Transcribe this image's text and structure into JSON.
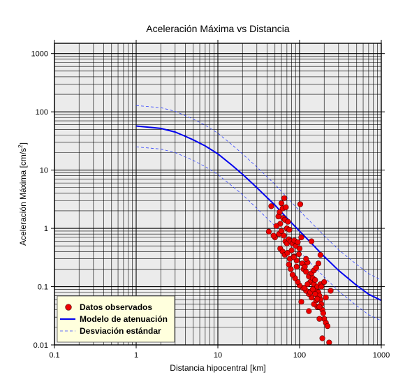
{
  "chart_data": {
    "type": "scatter",
    "title": "Aceleración Máxima vs Distancia",
    "xlabel": "Distancia hipocentral [km]",
    "ylabel": "Aceleración Máxima [cm/s",
    "ylabel_sup": "2",
    "ylabel_end": "]",
    "xscale": "log",
    "yscale": "log",
    "xlim": [
      0.1,
      1000
    ],
    "ylim": [
      0.01,
      1500
    ],
    "grid": true,
    "legend_position": "bottom-left",
    "x_ticks": [
      {
        "value": 0.1,
        "label": "0.1"
      },
      {
        "value": 1,
        "label": "1"
      },
      {
        "value": 10,
        "label": "10"
      },
      {
        "value": 100,
        "label": "100"
      },
      {
        "value": 1000,
        "label": "1000"
      }
    ],
    "y_ticks": [
      {
        "value": 0.01,
        "label": "0.01"
      },
      {
        "value": 0.1,
        "label": "0.1"
      },
      {
        "value": 1,
        "label": "1"
      },
      {
        "value": 10,
        "label": "10"
      },
      {
        "value": 100,
        "label": "100"
      },
      {
        "value": 1000,
        "label": "1000"
      }
    ],
    "colors": {
      "plot_background": "#ebebeb",
      "grid": "#000000",
      "model": "#0000ee",
      "deviation": "#3344ff",
      "points": "#ee0000",
      "point_edge": "#550000",
      "legend_background": "#ffffdd"
    },
    "series": [
      {
        "name": "Datos observados",
        "style": "scatter",
        "points": [
          [
            45,
            2.4
          ],
          [
            50,
            0.7
          ],
          [
            55,
            1.6
          ],
          [
            57,
            1.9
          ],
          [
            60,
            2.7
          ],
          [
            62,
            2.2
          ],
          [
            65,
            3.3
          ],
          [
            68,
            2.3
          ],
          [
            58,
            1.2
          ],
          [
            63,
            1.5
          ],
          [
            66,
            1.4
          ],
          [
            70,
            1.0
          ],
          [
            72,
            1.3
          ],
          [
            75,
            0.95
          ],
          [
            52,
            1.1
          ],
          [
            56,
            0.8
          ],
          [
            60,
            0.9
          ],
          [
            64,
            0.75
          ],
          [
            67,
            0.6
          ],
          [
            70,
            0.55
          ],
          [
            74,
            0.65
          ],
          [
            78,
            0.6
          ],
          [
            82,
            0.55
          ],
          [
            86,
            0.62
          ],
          [
            90,
            0.5
          ],
          [
            95,
            0.58
          ],
          [
            100,
            0.45
          ],
          [
            105,
            0.7
          ],
          [
            42,
            0.88
          ],
          [
            48,
            0.75
          ],
          [
            58,
            0.45
          ],
          [
            62,
            0.4
          ],
          [
            66,
            0.35
          ],
          [
            71,
            0.38
          ],
          [
            76,
            0.3
          ],
          [
            80,
            0.42
          ],
          [
            85,
            0.33
          ],
          [
            92,
            0.28
          ],
          [
            98,
            0.36
          ],
          [
            102,
            2.6
          ],
          [
            108,
            0.25
          ],
          [
            112,
            0.2
          ],
          [
            116,
            0.22
          ],
          [
            120,
            0.18
          ],
          [
            125,
            0.26
          ],
          [
            130,
            0.15
          ],
          [
            135,
            0.12
          ],
          [
            140,
            0.6
          ],
          [
            145,
            0.14
          ],
          [
            150,
            0.11
          ],
          [
            155,
            0.13
          ],
          [
            160,
            0.09
          ],
          [
            165,
            0.1
          ],
          [
            170,
            0.08
          ],
          [
            175,
            0.07
          ],
          [
            180,
            0.06
          ],
          [
            185,
            0.05
          ],
          [
            190,
            0.04
          ],
          [
            195,
            0.035
          ],
          [
            200,
            0.028
          ],
          [
            210,
            0.024
          ],
          [
            220,
            0.021
          ],
          [
            230,
            0.011
          ],
          [
            190,
            0.013
          ],
          [
            175,
            0.028
          ],
          [
            165,
            0.045
          ],
          [
            150,
            0.05
          ],
          [
            140,
            0.065
          ],
          [
            130,
            0.075
          ],
          [
            120,
            0.085
          ],
          [
            110,
            0.095
          ],
          [
            100,
            0.105
          ],
          [
            95,
            0.12
          ],
          [
            88,
            0.14
          ],
          [
            82,
            0.16
          ],
          [
            78,
            0.2
          ],
          [
            74,
            0.24
          ],
          [
            140,
            0.17
          ],
          [
            150,
            0.19
          ],
          [
            160,
            0.21
          ],
          [
            170,
            0.25
          ],
          [
            180,
            0.11
          ],
          [
            185,
            0.1
          ],
          [
            200,
            0.12
          ],
          [
            240,
            0.085
          ],
          [
            210,
            0.065
          ],
          [
            105,
            0.055
          ],
          [
            130,
            0.038
          ],
          [
            160,
            0.058
          ],
          [
            175,
            0.045
          ],
          [
            85,
            0.32
          ],
          [
            92,
            0.22
          ],
          [
            115,
            0.095
          ],
          [
            125,
            0.11
          ],
          [
            135,
            0.08
          ],
          [
            145,
            0.09
          ],
          [
            155,
            0.075
          ],
          [
            165,
            0.062
          ],
          [
            120,
            0.3
          ],
          [
            180,
            0.35
          ]
        ]
      },
      {
        "name": "Modelo de atenuación",
        "style": "solid",
        "points": [
          [
            1,
            57
          ],
          [
            2,
            52
          ],
          [
            3,
            45
          ],
          [
            4,
            38
          ],
          [
            5,
            33
          ],
          [
            7,
            26
          ],
          [
            10,
            19
          ],
          [
            15,
            12
          ],
          [
            20,
            8.5
          ],
          [
            30,
            5
          ],
          [
            50,
            2.5
          ],
          [
            70,
            1.5
          ],
          [
            100,
            0.9
          ],
          [
            150,
            0.5
          ],
          [
            200,
            0.33
          ],
          [
            300,
            0.19
          ],
          [
            500,
            0.105
          ],
          [
            700,
            0.074
          ],
          [
            1000,
            0.058
          ]
        ]
      },
      {
        "name": "Desviación estándar",
        "style": "dashed",
        "upper": [
          [
            1,
            128
          ],
          [
            2,
            118
          ],
          [
            3,
            102
          ],
          [
            4,
            86
          ],
          [
            5,
            75
          ],
          [
            7,
            59
          ],
          [
            10,
            43
          ],
          [
            15,
            27
          ],
          [
            20,
            19
          ],
          [
            30,
            11.3
          ],
          [
            50,
            5.7
          ],
          [
            70,
            3.4
          ],
          [
            100,
            2.0
          ],
          [
            150,
            1.13
          ],
          [
            200,
            0.75
          ],
          [
            300,
            0.43
          ],
          [
            500,
            0.24
          ],
          [
            700,
            0.167
          ],
          [
            1000,
            0.13
          ]
        ],
        "lower": [
          [
            1,
            25
          ],
          [
            2,
            23
          ],
          [
            3,
            20
          ],
          [
            4,
            16.8
          ],
          [
            5,
            14.6
          ],
          [
            7,
            11.5
          ],
          [
            10,
            8.4
          ],
          [
            15,
            5.3
          ],
          [
            20,
            3.8
          ],
          [
            30,
            2.2
          ],
          [
            50,
            1.1
          ],
          [
            70,
            0.66
          ],
          [
            100,
            0.4
          ],
          [
            150,
            0.22
          ],
          [
            200,
            0.147
          ],
          [
            300,
            0.084
          ],
          [
            500,
            0.047
          ],
          [
            700,
            0.033
          ],
          [
            1000,
            0.026
          ]
        ]
      }
    ]
  }
}
